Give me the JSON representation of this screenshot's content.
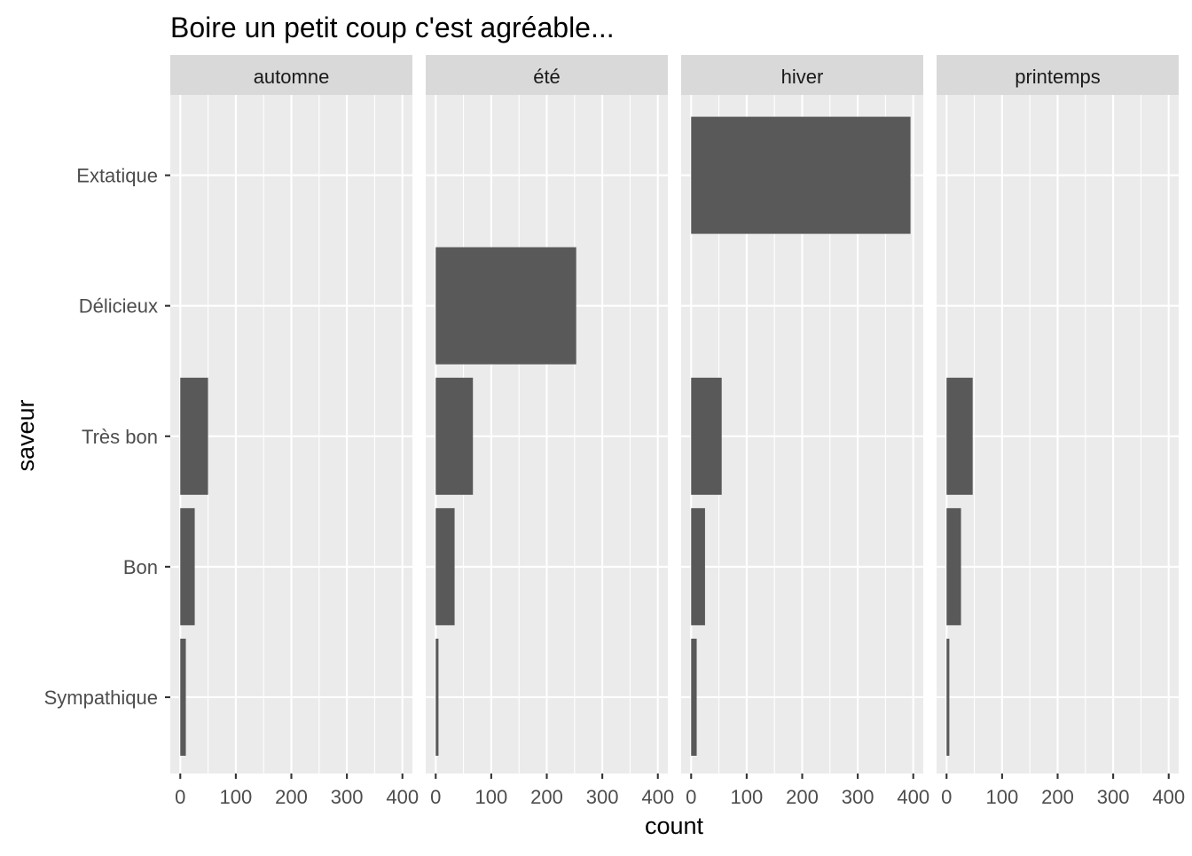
{
  "chart_data": {
    "type": "bar",
    "orientation": "horizontal",
    "title": "Boire un petit coup c'est agréable...",
    "xlabel": "count",
    "ylabel": "saveur",
    "categories": [
      "Sympathique",
      "Bon",
      "Très bon",
      "Délicieux",
      "Extatique"
    ],
    "facets": [
      {
        "label": "automne",
        "values": [
          10,
          26,
          50,
          0,
          0
        ]
      },
      {
        "label": "été",
        "values": [
          5,
          34,
          67,
          253,
          0
        ]
      },
      {
        "label": "hiver",
        "values": [
          10,
          25,
          55,
          0,
          395
        ]
      },
      {
        "label": "printemps",
        "values": [
          5,
          26,
          47,
          0,
          0
        ]
      }
    ],
    "xticks": [
      0,
      100,
      200,
      300,
      400
    ],
    "xlim": [
      -18,
      418
    ],
    "bar_color": "#595959",
    "panel_background": "#ebebeb",
    "strip_background": "#d9d9d9",
    "grid": true,
    "legend": "none"
  }
}
